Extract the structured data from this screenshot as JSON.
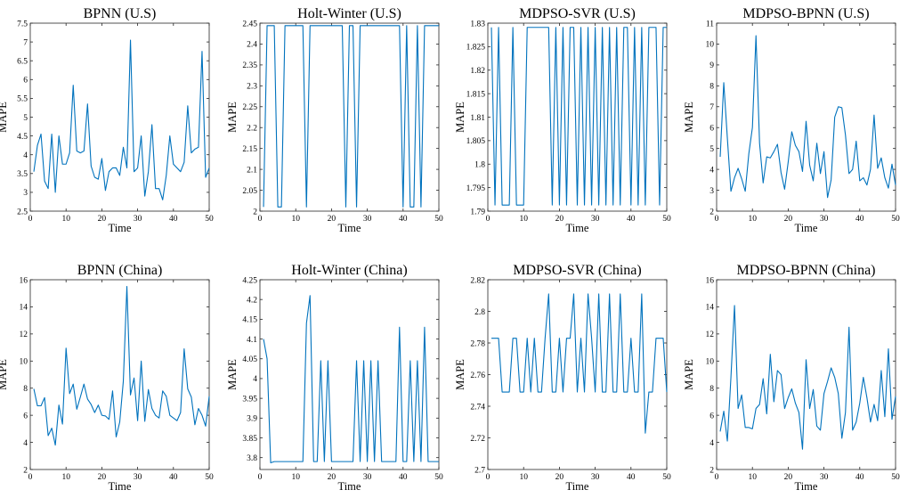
{
  "figure": {
    "series_color": "#0072BD"
  },
  "chart_data": [
    {
      "type": "line",
      "title": "BPNN (U.S)",
      "xlabel": "Time",
      "ylabel": "MAPE",
      "xlim": [
        0,
        50
      ],
      "ylim": [
        2.5,
        7.5
      ],
      "xticks": [
        0,
        10,
        20,
        30,
        40,
        50
      ],
      "yticks": [
        2.5,
        3,
        3.5,
        4,
        4.5,
        5,
        5.5,
        6,
        6.5,
        7,
        7.5
      ],
      "series": [
        {
          "x_start": 1,
          "values": [
            3.55,
            4.25,
            4.55,
            3.3,
            3.1,
            4.55,
            3.0,
            4.5,
            3.75,
            3.75,
            4.05,
            5.85,
            4.1,
            4.05,
            4.1,
            5.35,
            3.7,
            3.4,
            3.35,
            3.9,
            3.05,
            3.55,
            3.65,
            3.65,
            3.45,
            4.2,
            3.65,
            7.05,
            3.55,
            3.65,
            4.5,
            2.9,
            3.55,
            4.8,
            3.1,
            3.1,
            2.8,
            3.45,
            4.5,
            3.75,
            3.65,
            3.55,
            3.8,
            5.3,
            4.05,
            4.15,
            4.2,
            6.75,
            3.4,
            3.65
          ]
        }
      ]
    },
    {
      "type": "line",
      "title": "Holt-Winter (U.S)",
      "xlabel": "Time",
      "ylabel": "MAPE",
      "xlim": [
        0,
        50
      ],
      "ylim": [
        2,
        2.45
      ],
      "xticks": [
        0,
        10,
        20,
        30,
        40,
        50
      ],
      "yticks": [
        2,
        2.05,
        2.1,
        2.15,
        2.2,
        2.25,
        2.3,
        2.35,
        2.4,
        2.45
      ],
      "series": [
        {
          "x_start": 1,
          "values": [
            2.01,
            2.444,
            2.444,
            2.444,
            2.01,
            2.01,
            2.444,
            2.444,
            2.444,
            2.444,
            2.444,
            2.444,
            2.01,
            2.444,
            2.444,
            2.444,
            2.444,
            2.444,
            2.444,
            2.444,
            2.444,
            2.444,
            2.444,
            2.01,
            2.444,
            2.444,
            2.01,
            2.444,
            2.444,
            2.444,
            2.444,
            2.444,
            2.444,
            2.444,
            2.444,
            2.444,
            2.444,
            2.444,
            2.444,
            2.01,
            2.444,
            2.01,
            2.01,
            2.444,
            2.01,
            2.444,
            2.444,
            2.444,
            2.444,
            2.444
          ]
        }
      ]
    },
    {
      "type": "line",
      "title": "MDPSO-SVR (U.S)",
      "xlabel": "Time",
      "ylabel": "MAPE",
      "xlim": [
        0,
        50
      ],
      "ylim": [
        1.79,
        1.83
      ],
      "xticks": [
        0,
        10,
        20,
        30,
        40,
        50
      ],
      "yticks": [
        1.79,
        1.795,
        1.8,
        1.805,
        1.81,
        1.815,
        1.82,
        1.825,
        1.83
      ],
      "series": [
        {
          "x_start": 1,
          "values": [
            1.8291,
            1.7913,
            1.8291,
            1.7913,
            1.7913,
            1.7913,
            1.8291,
            1.7913,
            1.7913,
            1.7913,
            1.8291,
            1.8291,
            1.8291,
            1.8291,
            1.8291,
            1.8291,
            1.8291,
            1.7913,
            1.8291,
            1.7913,
            1.8291,
            1.7913,
            1.8291,
            1.8291,
            1.7913,
            1.8291,
            1.7913,
            1.8291,
            1.7913,
            1.8291,
            1.7913,
            1.8291,
            1.7913,
            1.8291,
            1.7913,
            1.8291,
            1.7913,
            1.8291,
            1.8291,
            1.7913,
            1.8291,
            1.7913,
            1.8291,
            1.7913,
            1.8291,
            1.8291,
            1.8291,
            1.7913,
            1.8291,
            1.8291
          ]
        }
      ]
    },
    {
      "type": "line",
      "title": "MDPSO-BPNN (U.S)",
      "xlabel": "Time",
      "ylabel": "MAPE",
      "xlim": [
        0,
        50
      ],
      "ylim": [
        2,
        11
      ],
      "xticks": [
        0,
        10,
        20,
        30,
        40,
        50
      ],
      "yticks": [
        2,
        3,
        4,
        5,
        6,
        7,
        8,
        9,
        10,
        11
      ],
      "series": [
        {
          "x_start": 1,
          "values": [
            4.6,
            8.15,
            5.5,
            2.95,
            3.6,
            4.05,
            3.55,
            2.95,
            4.75,
            6.0,
            10.4,
            5.25,
            3.35,
            4.6,
            4.55,
            4.85,
            5.2,
            3.85,
            3.05,
            4.35,
            5.8,
            5.15,
            4.85,
            3.9,
            6.3,
            4.2,
            3.45,
            5.25,
            3.8,
            4.85,
            2.65,
            3.5,
            6.5,
            7.0,
            6.95,
            5.65,
            3.8,
            4.0,
            5.35,
            3.45,
            3.6,
            3.25,
            4.0,
            6.6,
            4.05,
            4.55,
            3.6,
            3.1,
            4.25,
            3.25
          ]
        }
      ]
    },
    {
      "type": "line",
      "title": "BPNN (China)",
      "xlabel": "Time",
      "ylabel": "MAPE",
      "xlim": [
        0,
        50
      ],
      "ylim": [
        2,
        16
      ],
      "xticks": [
        0,
        10,
        20,
        30,
        40,
        50
      ],
      "yticks": [
        2,
        4,
        6,
        8,
        10,
        12,
        14,
        16
      ],
      "series": [
        {
          "x_start": 1,
          "values": [
            7.95,
            6.7,
            6.7,
            7.3,
            4.5,
            5.05,
            3.8,
            6.75,
            5.35,
            10.95,
            7.6,
            8.3,
            6.45,
            7.35,
            8.3,
            7.2,
            6.8,
            6.2,
            6.75,
            6.0,
            5.95,
            5.7,
            7.8,
            4.4,
            5.5,
            8.5,
            15.5,
            7.5,
            8.75,
            5.6,
            10.0,
            5.55,
            7.9,
            6.5,
            6.0,
            5.8,
            7.8,
            7.4,
            6.0,
            5.8,
            5.6,
            6.2,
            10.9,
            7.95,
            7.35,
            5.3,
            6.5,
            6.0,
            5.2,
            7.4
          ]
        }
      ]
    },
    {
      "type": "line",
      "title": "Holt-Winter (China)",
      "xlabel": "Time",
      "ylabel": "MAPE",
      "xlim": [
        0,
        50
      ],
      "ylim": [
        3.77,
        4.25
      ],
      "xticks": [
        0,
        10,
        20,
        30,
        40,
        50
      ],
      "yticks": [
        3.8,
        3.85,
        3.9,
        3.95,
        4,
        4.05,
        4.1,
        4.15,
        4.2,
        4.25
      ],
      "series": [
        {
          "x_start": 1,
          "values": [
            4.1,
            4.05,
            3.787,
            3.79,
            3.79,
            3.79,
            3.79,
            3.79,
            3.79,
            3.79,
            3.79,
            3.79,
            4.14,
            4.21,
            3.79,
            3.79,
            4.045,
            3.79,
            4.045,
            3.79,
            3.79,
            3.79,
            3.79,
            3.79,
            3.79,
            3.79,
            4.045,
            3.79,
            4.045,
            3.79,
            4.045,
            3.79,
            4.045,
            3.79,
            3.79,
            3.79,
            3.79,
            3.79,
            4.13,
            3.79,
            3.79,
            4.045,
            3.79,
            4.045,
            3.79,
            4.13,
            3.79,
            3.79,
            3.79,
            3.79
          ]
        }
      ]
    },
    {
      "type": "line",
      "title": "MDPSO-SVR (China)",
      "xlabel": "Time",
      "ylabel": "MAPE",
      "xlim": [
        0,
        50
      ],
      "ylim": [
        2.7,
        2.82
      ],
      "xticks": [
        0,
        10,
        20,
        30,
        40,
        50
      ],
      "yticks": [
        2.7,
        2.72,
        2.74,
        2.76,
        2.78,
        2.8,
        2.82
      ],
      "series": [
        {
          "x_start": 1,
          "values": [
            2.783,
            2.783,
            2.783,
            2.749,
            2.749,
            2.749,
            2.783,
            2.783,
            2.749,
            2.749,
            2.783,
            2.749,
            2.783,
            2.749,
            2.749,
            2.783,
            2.811,
            2.749,
            2.749,
            2.783,
            2.749,
            2.783,
            2.783,
            2.811,
            2.749,
            2.783,
            2.749,
            2.811,
            2.783,
            2.749,
            2.811,
            2.749,
            2.749,
            2.811,
            2.749,
            2.749,
            2.811,
            2.749,
            2.749,
            2.783,
            2.749,
            2.749,
            2.811,
            2.723,
            2.749,
            2.749,
            2.783,
            2.783,
            2.783,
            2.749
          ]
        }
      ]
    },
    {
      "type": "line",
      "title": "MDPSO-BPNN (China)",
      "xlabel": "Time",
      "ylabel": "MAPE",
      "xlim": [
        0,
        50
      ],
      "ylim": [
        2,
        16
      ],
      "xticks": [
        0,
        10,
        20,
        30,
        40,
        50
      ],
      "yticks": [
        2,
        4,
        6,
        8,
        10,
        12,
        14,
        16
      ],
      "series": [
        {
          "x_start": 1,
          "values": [
            4.8,
            6.3,
            4.1,
            8.8,
            14.1,
            6.5,
            7.5,
            5.1,
            5.1,
            5.0,
            6.5,
            6.8,
            8.7,
            6.1,
            10.5,
            7.0,
            9.3,
            9.0,
            6.5,
            7.3,
            7.95,
            6.9,
            6.2,
            3.5,
            10.1,
            6.5,
            7.9,
            5.2,
            4.9,
            7.6,
            8.5,
            9.5,
            8.8,
            7.6,
            4.3,
            6.2,
            12.5,
            4.9,
            5.5,
            6.9,
            8.8,
            7.3,
            5.5,
            6.8,
            5.6,
            9.3,
            5.9,
            10.9,
            5.7,
            7.4
          ]
        }
      ]
    }
  ]
}
